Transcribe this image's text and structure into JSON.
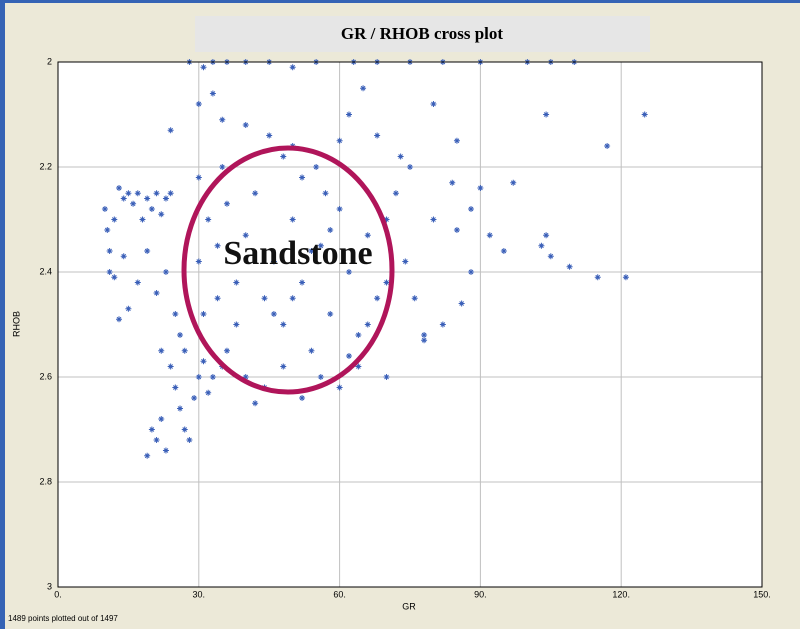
{
  "chart_data": {
    "type": "scatter",
    "title": "GR / RHOB cross plot",
    "x_label": "GR",
    "y_label": "RHOB",
    "annotation": "Sandstone",
    "footer": "1489 points plotted out of 1497",
    "color": "#3a5fb8",
    "xlim": [
      0,
      150
    ],
    "xticks": [
      {
        "value": 0,
        "label": "0."
      },
      {
        "value": 30,
        "label": "30."
      },
      {
        "value": 60,
        "label": "60."
      },
      {
        "value": 90,
        "label": "90."
      },
      {
        "value": 120,
        "label": "120."
      },
      {
        "value": 150,
        "label": "150."
      }
    ],
    "ylim": [
      2,
      3
    ],
    "y_inverted": true,
    "yticks": [
      2,
      2.2,
      2.4,
      2.6,
      2.8,
      3
    ],
    "grid": true,
    "x": [
      10,
      10.5,
      11,
      11,
      12,
      12,
      13,
      14,
      15,
      16,
      17,
      18,
      19,
      20,
      21,
      22,
      23,
      24,
      13,
      15,
      14,
      17,
      19,
      21,
      23,
      24,
      25,
      26,
      27,
      22,
      24,
      25,
      26,
      27,
      28,
      21,
      19,
      22,
      23,
      20,
      29,
      30,
      31,
      32,
      33,
      35,
      28,
      31,
      33,
      36,
      40,
      45,
      50,
      55,
      63,
      68,
      75,
      82,
      90,
      100,
      105,
      110,
      33,
      30,
      35,
      40,
      45,
      48,
      50,
      55,
      60,
      62,
      65,
      68,
      73,
      80,
      85,
      30,
      32,
      34,
      36,
      38,
      40,
      42,
      44,
      46,
      48,
      50,
      52,
      54,
      56,
      58,
      60,
      62,
      64,
      66,
      68,
      70,
      72,
      74,
      36,
      40,
      44,
      48,
      52,
      56,
      60,
      64,
      42,
      38,
      46,
      50,
      54,
      58,
      62,
      66,
      70,
      76,
      78,
      80,
      85,
      88,
      90,
      92,
      95,
      97,
      103,
      104,
      105,
      104,
      109,
      115,
      117,
      121,
      125,
      88,
      86,
      84,
      75,
      78,
      82,
      70,
      34,
      30,
      31,
      35,
      52,
      57
    ],
    "values": [
      2.28,
      2.32,
      2.36,
      2.4,
      2.3,
      2.41,
      2.24,
      2.26,
      2.25,
      2.27,
      2.25,
      2.3,
      2.26,
      2.28,
      2.25,
      2.29,
      2.26,
      2.25,
      2.49,
      2.47,
      2.37,
      2.42,
      2.36,
      2.44,
      2.4,
      2.13,
      2.48,
      2.52,
      2.55,
      2.55,
      2.58,
      2.62,
      2.66,
      2.7,
      2.72,
      2.72,
      2.75,
      2.68,
      2.74,
      2.7,
      2.64,
      2.6,
      2.57,
      2.63,
      2.6,
      2.58,
      2,
      2.01,
      2,
      2,
      2,
      2,
      2.01,
      2,
      2,
      2,
      2,
      2,
      2,
      2,
      2,
      2,
      2.06,
      2.08,
      2.11,
      2.12,
      2.14,
      2.18,
      2.16,
      2.2,
      2.15,
      2.1,
      2.05,
      2.14,
      2.18,
      2.08,
      2.15,
      2.22,
      2.3,
      2.35,
      2.27,
      2.42,
      2.33,
      2.25,
      2.45,
      2.38,
      2.5,
      2.3,
      2.42,
      2.55,
      2.35,
      2.48,
      2.28,
      2.4,
      2.52,
      2.33,
      2.45,
      2.3,
      2.25,
      2.38,
      2.55,
      2.6,
      2.62,
      2.58,
      2.64,
      2.6,
      2.62,
      2.58,
      2.65,
      2.5,
      2.48,
      2.45,
      2.36,
      2.32,
      2.56,
      2.5,
      2.42,
      2.45,
      2.53,
      2.3,
      2.32,
      2.28,
      2.24,
      2.33,
      2.36,
      2.23,
      2.35,
      2.33,
      2.37,
      2.1,
      2.39,
      2.41,
      2.16,
      2.41,
      2.1,
      2.4,
      2.46,
      2.23,
      2.2,
      2.52,
      2.5,
      2.6,
      2.45,
      2.38,
      2.48,
      2.2,
      2.22,
      2.25
    ]
  }
}
